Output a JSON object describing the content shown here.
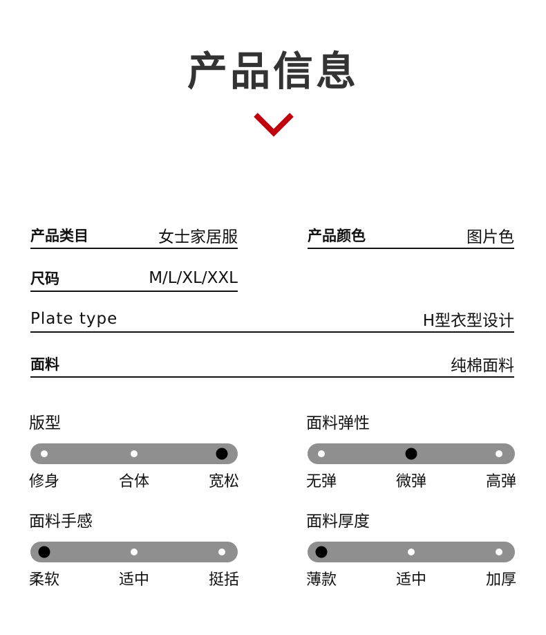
{
  "title": "产品信息",
  "accent_color": "#c0000c",
  "specs": [
    {
      "label": "产品类目",
      "value": "女士家居服"
    },
    {
      "label": "产品颜色",
      "value": "图片色"
    },
    {
      "label": "尺码",
      "value": "M/L/XL/XXL"
    },
    {
      "label": "Plate type",
      "value": "H型衣型设计"
    },
    {
      "label": "面料",
      "value": "纯棉面料"
    }
  ],
  "scales": [
    {
      "title": "版型",
      "options": [
        "修身",
        "合体",
        "宽松"
      ],
      "selected_index": 2
    },
    {
      "title": "面料弹性",
      "options": [
        "无弹",
        "微弹",
        "高弹"
      ],
      "selected_index": 1
    },
    {
      "title": "面料手感",
      "options": [
        "柔软",
        "适中",
        "挺括"
      ],
      "selected_index": 0
    },
    {
      "title": "面料厚度",
      "options": [
        "薄款",
        "适中",
        "加厚"
      ],
      "selected_index": 0
    }
  ]
}
